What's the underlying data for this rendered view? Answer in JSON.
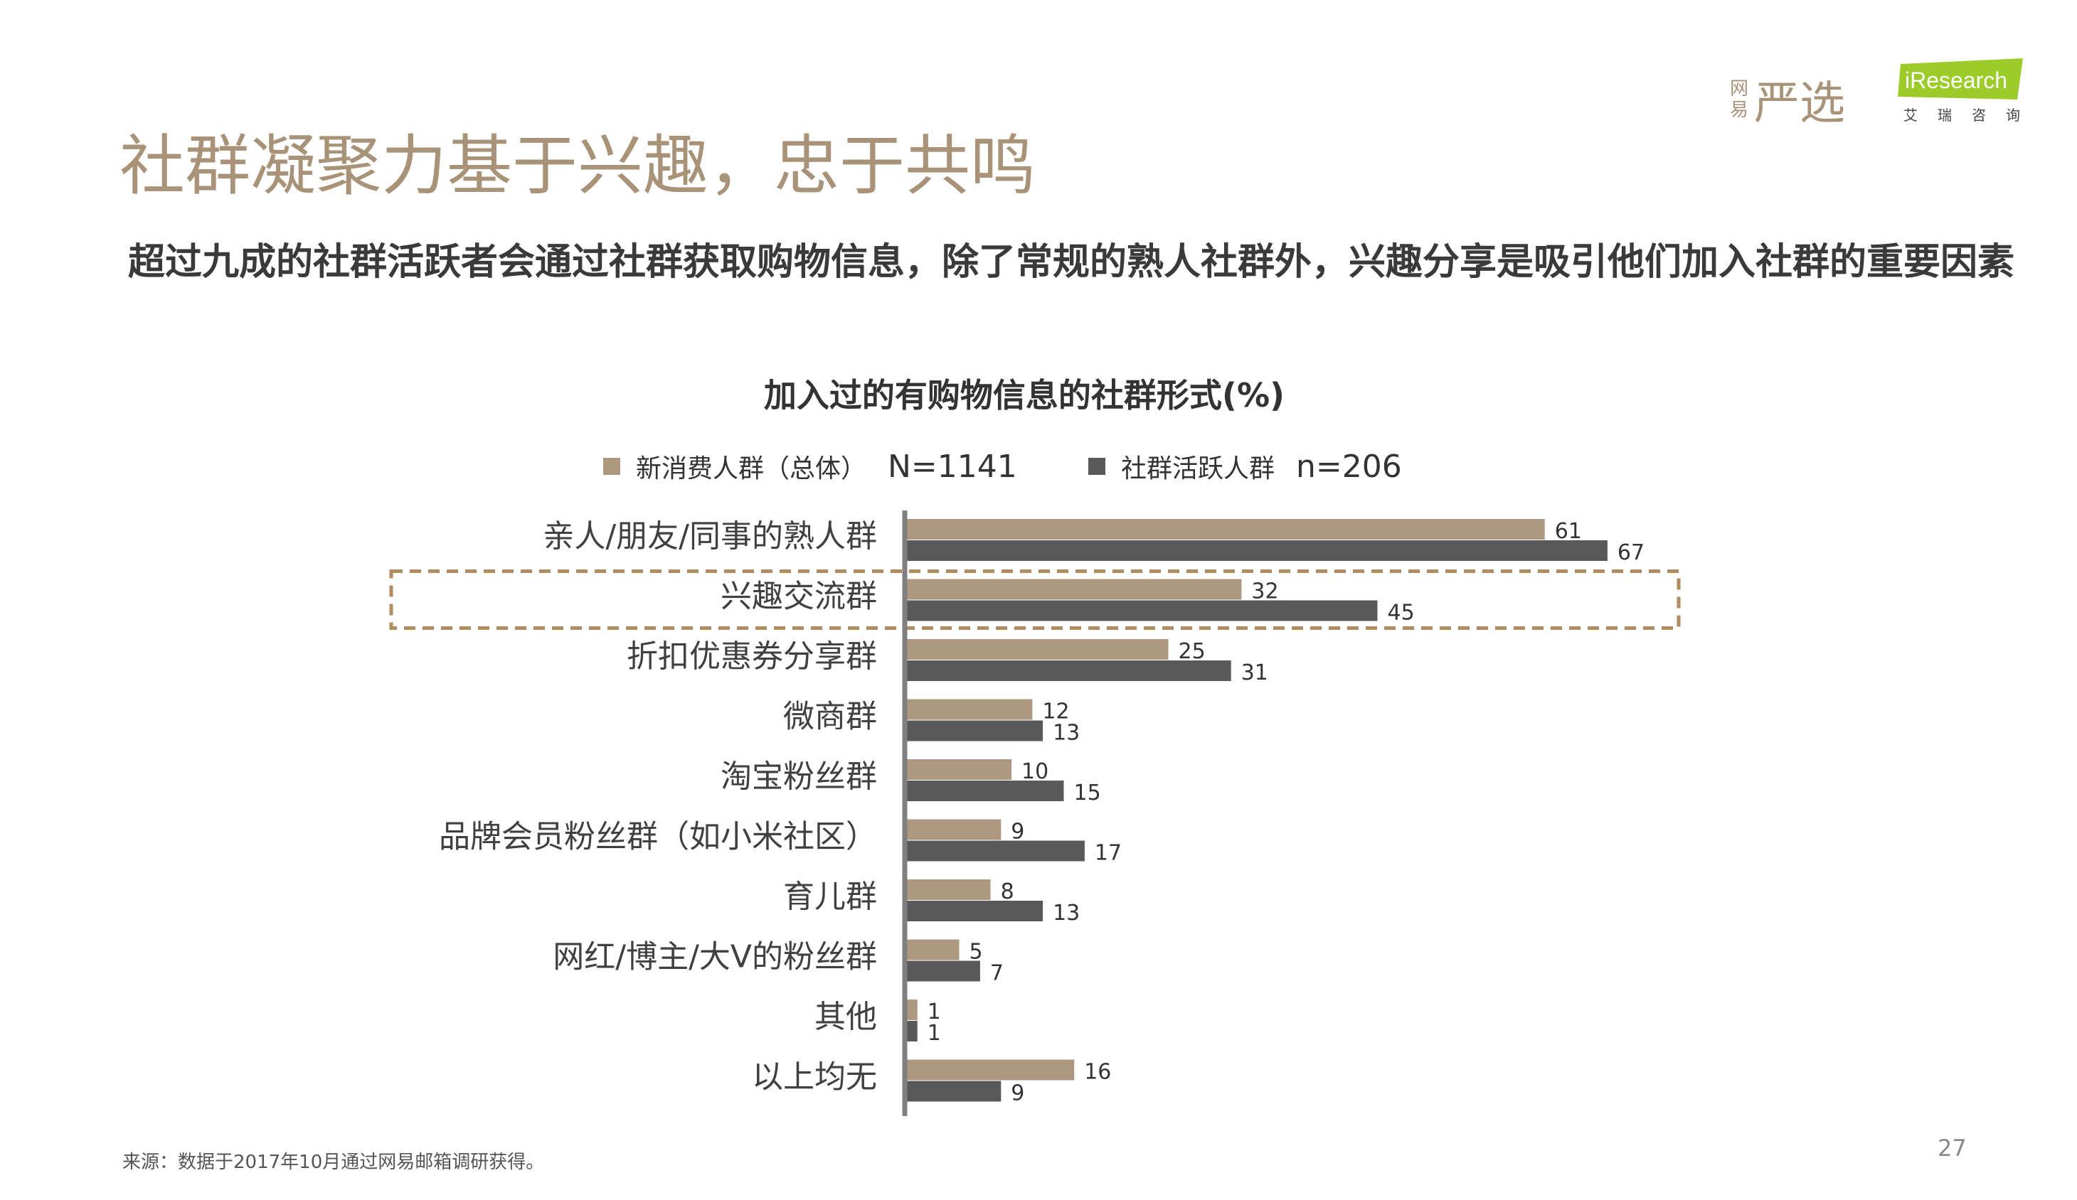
{
  "slide": {
    "title": "社群凝聚力基于兴趣，忠于共鸣",
    "subtitle": "超过九成的社群活跃者会通过社群获取购物信息，除了常规的熟人社群外，兴趣分享是吸引他们加入社群的重要因素",
    "source": "来源：数据于2017年10月通过网易邮箱调研获得。",
    "page_number": "27"
  },
  "logos": {
    "yanxuan": {
      "small_top": "网",
      "small_bottom": "易",
      "main": "严选"
    },
    "iresearch": {
      "main": "iResearch",
      "sub": "艾瑞咨询"
    }
  },
  "colors": {
    "series1": "#ae9780",
    "series2": "#595959",
    "highlight": "#b08c5f",
    "axis": "#7f7f7f"
  },
  "legend": [
    {
      "label": "新消费人群（总体）",
      "n": "N=1141"
    },
    {
      "label": "社群活跃人群",
      "n": "n=206"
    }
  ],
  "chart_data": {
    "type": "bar",
    "orientation": "horizontal",
    "title": "加入过的有购物信息的社群形式(%)",
    "categories": [
      "亲人/朋友/同事的熟人群",
      "兴趣交流群",
      "折扣优惠券分享群",
      "微商群",
      "淘宝粉丝群",
      "品牌会员粉丝群（如小米社区）",
      "育儿群",
      "网红/博主/大V的粉丝群",
      "其他",
      "以上均无"
    ],
    "series": [
      {
        "name": "新消费人群（总体）",
        "values": [
          61,
          32,
          25,
          12,
          10,
          9,
          8,
          5,
          1,
          16
        ]
      },
      {
        "name": "社群活跃人群",
        "values": [
          67,
          45,
          31,
          13,
          15,
          17,
          13,
          7,
          1,
          9
        ]
      }
    ],
    "highlighted_category": "兴趣交流群",
    "legend_position": "top"
  }
}
